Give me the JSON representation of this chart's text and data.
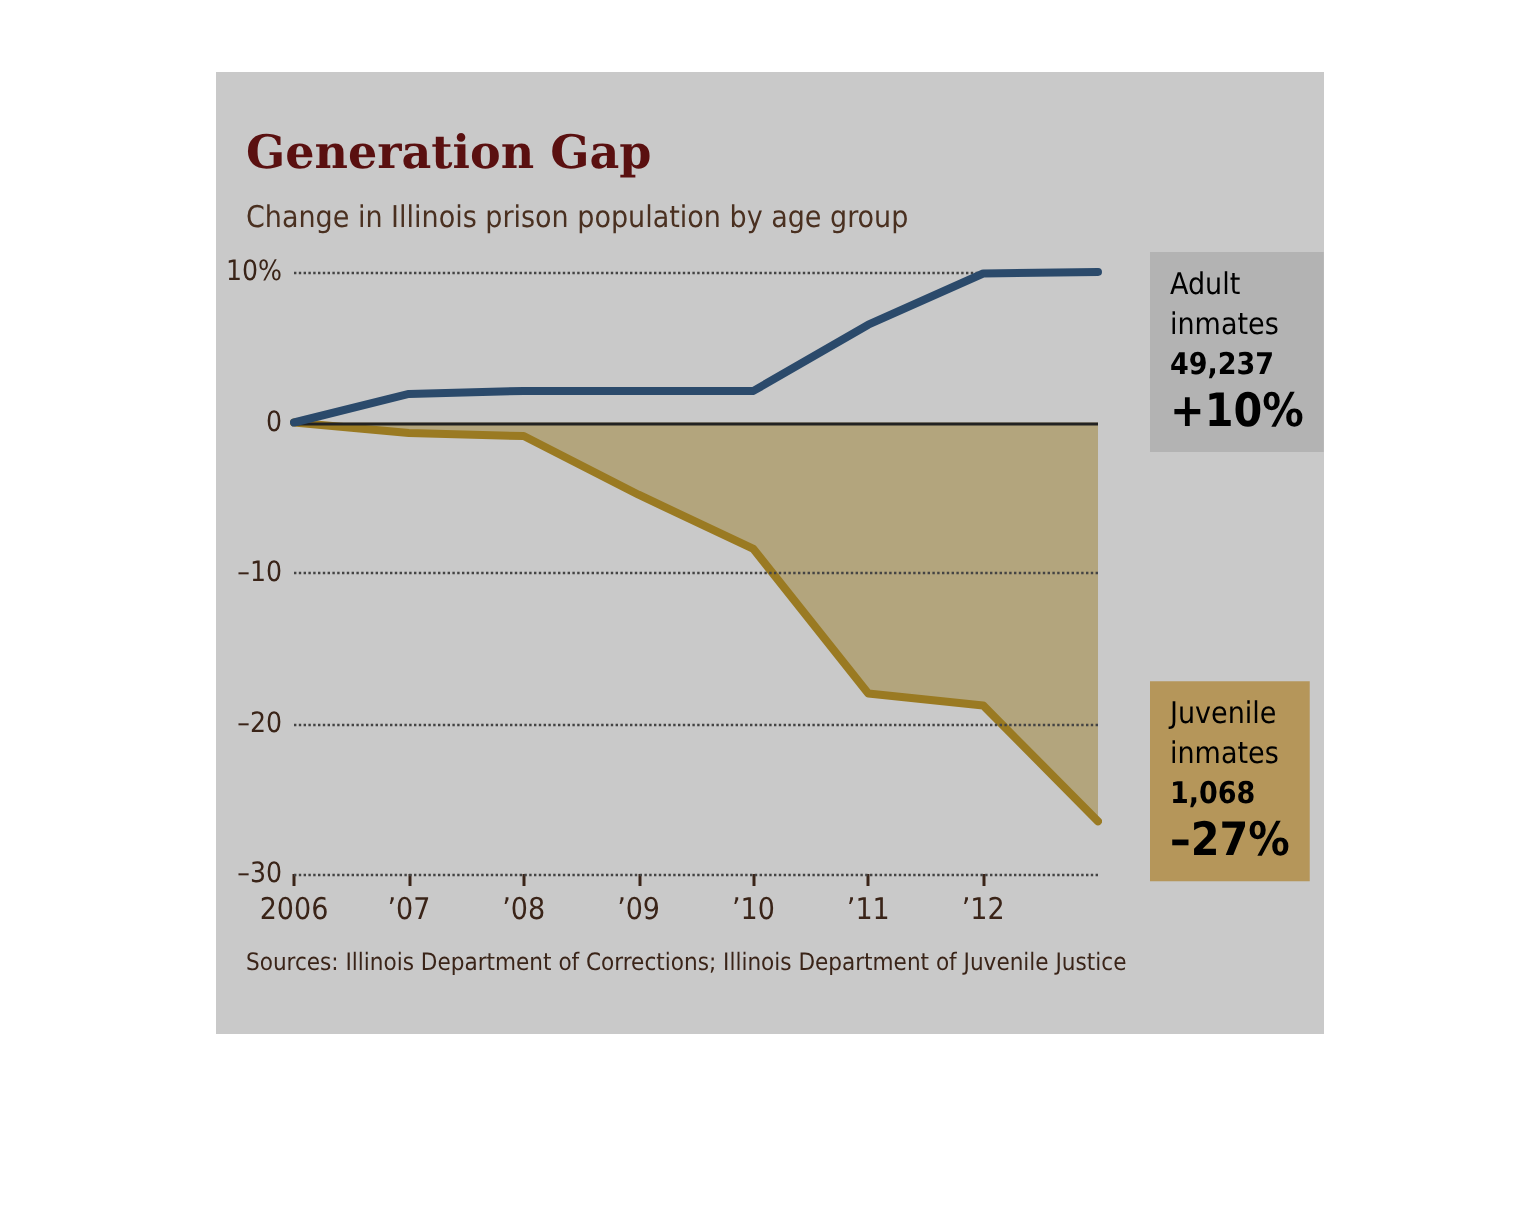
{
  "chart_data": {
    "type": "line",
    "title": "Generation Gap",
    "subtitle": "Change in Illinois prison population by age group",
    "x": [
      2006,
      2007,
      2008,
      2009,
      2010,
      2011,
      2012,
      2013
    ],
    "series": [
      {
        "type": "line",
        "color": "#2b4a6b",
        "values": [
          0,
          1.9,
          2.1,
          2.1,
          2.1,
          6.5,
          9.9,
          10
        ]
      },
      {
        "type": "area",
        "color": "#9a7a22",
        "values": [
          0,
          -0.7,
          -0.9,
          -4.8,
          -8.4,
          -18,
          -18.8,
          -26.5
        ]
      }
    ],
    "xlim": [
      2006,
      2013
    ],
    "xticks": [
      {
        "value": 2006,
        "label": "2006"
      },
      {
        "value": 2007,
        "label": "’07"
      },
      {
        "value": 2008,
        "label": "’08"
      },
      {
        "value": 2009,
        "label": "’09"
      },
      {
        "value": 2010,
        "label": "’10"
      },
      {
        "value": 2011,
        "label": "’11"
      },
      {
        "value": 2012,
        "label": "’12"
      }
    ],
    "ylim": [
      -30,
      10
    ],
    "yticks": [
      {
        "value": 10,
        "label": "10%"
      },
      0,
      {
        "value": -10,
        "label": "–10"
      },
      {
        "value": -20,
        "label": "–20"
      },
      {
        "value": -30,
        "label": "–30"
      }
    ],
    "grid": "y",
    "marker": "none",
    "line_style": "solid",
    "annotations": [
      {
        "text": "Adult\ninmates\n49,237\n+10%",
        "x": 2013,
        "y": 10
      },
      {
        "text": "Juvenile\ninmates\n1,068\n–27%",
        "x": 2013,
        "y": -26.5
      },
      "Sources: Illinois Department of Corrections; Illinois Department of Juvenile Justice"
    ]
  }
}
